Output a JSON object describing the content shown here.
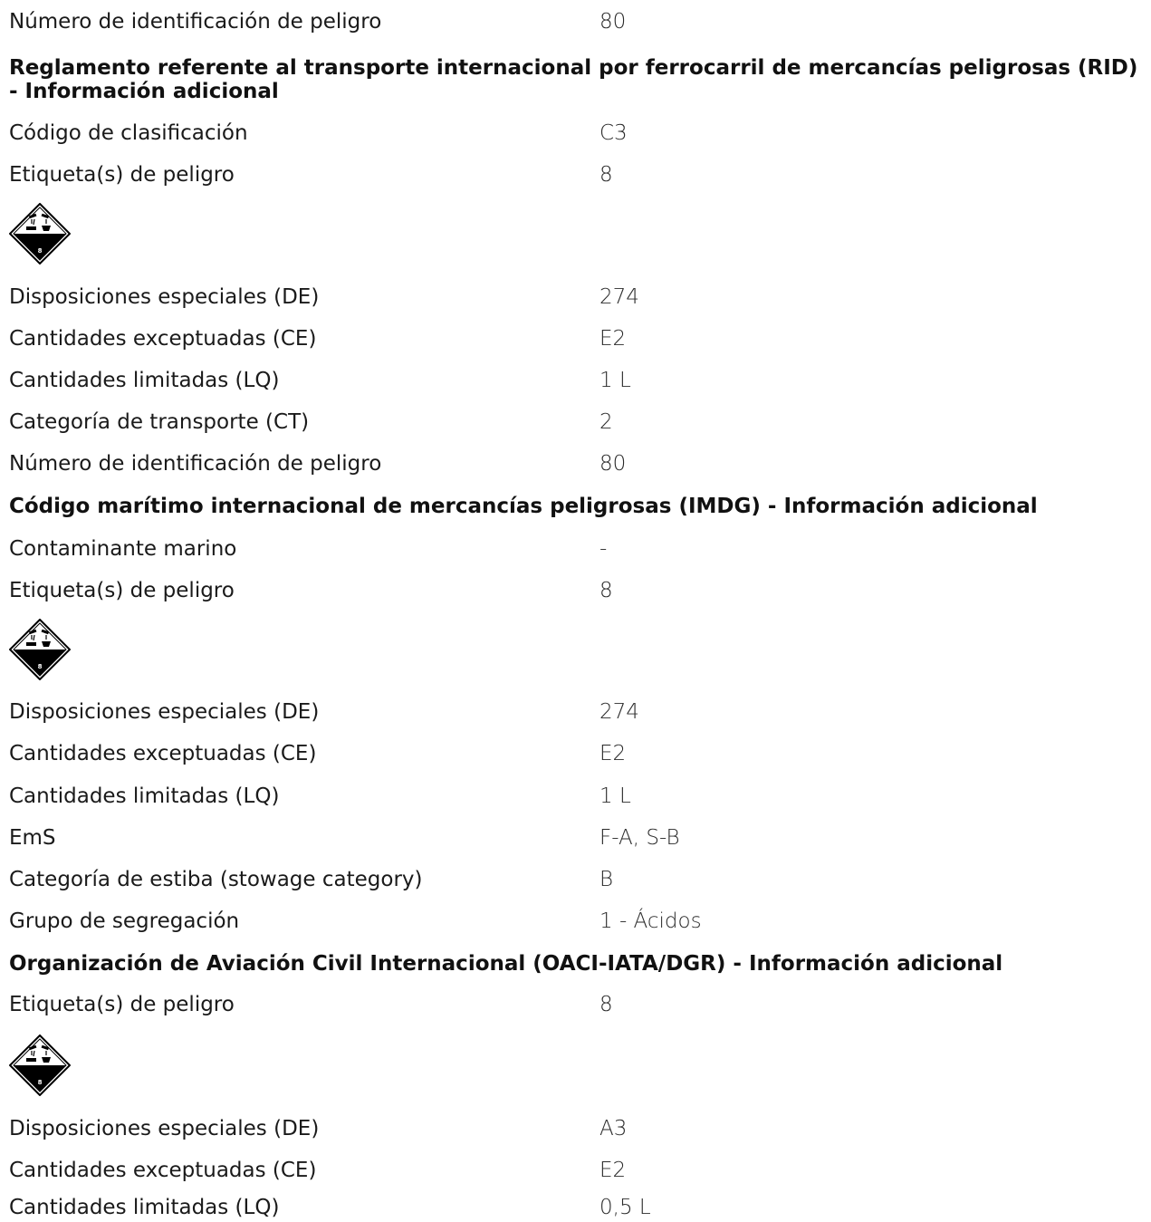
{
  "top": {
    "label": "Número de identificación de peligro",
    "value": "80"
  },
  "rid": {
    "heading": "Reglamento referente al transporte internacional por ferrocarril de mercancías peligrosas (RID) - Información adicional",
    "rows": [
      {
        "label": "Código de clasificación",
        "value": "C3"
      },
      {
        "label": "Etiqueta(s) de peligro",
        "value": "8"
      },
      {
        "label": "Disposiciones especiales (DE)",
        "value": "274"
      },
      {
        "label": "Cantidades exceptuadas (CE)",
        "value": "E2"
      },
      {
        "label": "Cantidades limitadas (LQ)",
        "value": "1 L"
      },
      {
        "label": "Categoría de transporte (CT)",
        "value": "2"
      },
      {
        "label": "Número de identificación de peligro",
        "value": "80"
      }
    ],
    "pictogram": {
      "icon": "corrosive-class-8-icon",
      "class_number": "8"
    }
  },
  "imdg": {
    "heading": "Código marítimo internacional de mercancías peligrosas (IMDG) - Información adicional",
    "rows": [
      {
        "label": "Contaminante marino",
        "value": "-"
      },
      {
        "label": "Etiqueta(s) de peligro",
        "value": "8"
      },
      {
        "label": "Disposiciones especiales (DE)",
        "value": "274"
      },
      {
        "label": "Cantidades exceptuadas (CE)",
        "value": "E2"
      },
      {
        "label": "Cantidades limitadas (LQ)",
        "value": "1 L"
      },
      {
        "label": "EmS",
        "value": "F-A, S-B"
      },
      {
        "label": "Categoría de estiba (stowage category)",
        "value": "B"
      },
      {
        "label": "Grupo de segregación",
        "value": "1 - Ácidos"
      }
    ],
    "pictogram": {
      "icon": "corrosive-class-8-icon",
      "class_number": "8"
    }
  },
  "icao": {
    "heading": "Organización de Aviación Civil Internacional (OACI-IATA/DGR) - Información adicional",
    "rows": [
      {
        "label": "Etiqueta(s) de peligro",
        "value": "8"
      },
      {
        "label": "Disposiciones especiales (DE)",
        "value": "A3"
      },
      {
        "label": "Cantidades exceptuadas (CE)",
        "value": "E2"
      },
      {
        "label": "Cantidades limitadas (LQ)",
        "value": "0,5 L"
      }
    ],
    "pictogram": {
      "icon": "corrosive-class-8-icon",
      "class_number": "8"
    }
  },
  "colors": {
    "text": "#1a1a1a",
    "value_text": "#2a2a2a",
    "background": "#ffffff"
  }
}
